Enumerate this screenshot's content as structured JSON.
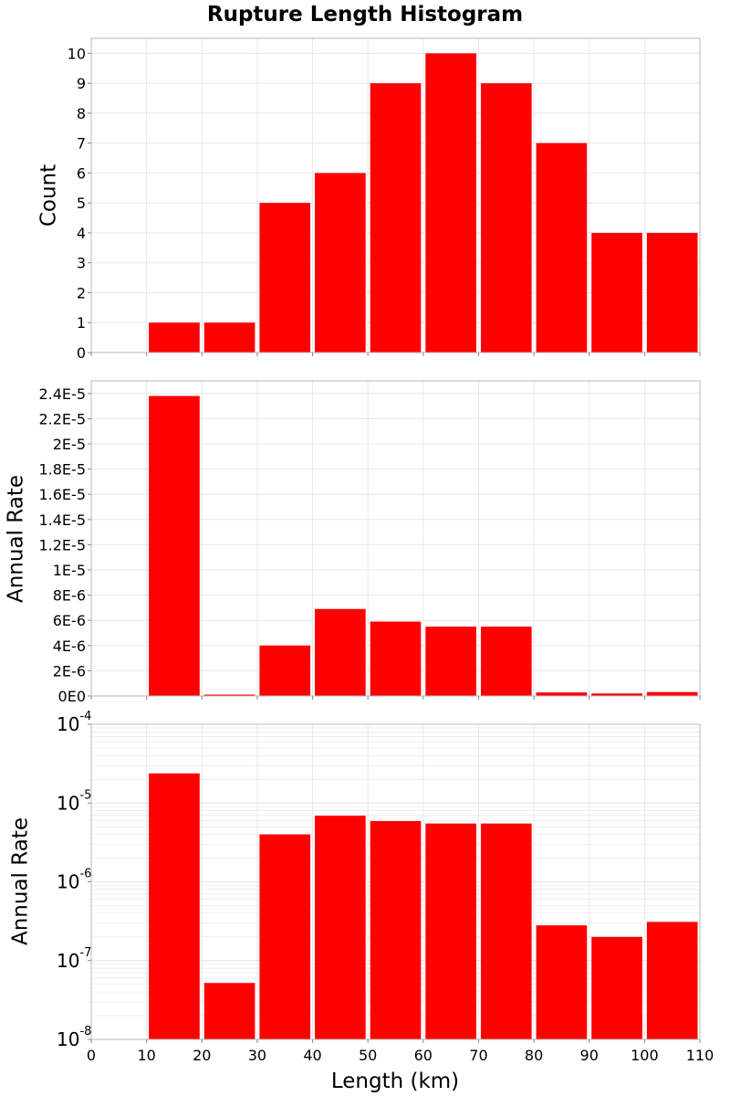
{
  "chart_data": {
    "title": "Rupture Length Histogram",
    "type": "bar",
    "colors": {
      "bar": "#ff0000",
      "grid": "#e8e8e8",
      "frame": "#b8b8b8"
    },
    "x": {
      "label": "Length (km)",
      "lim": [
        0,
        110
      ],
      "ticks": [
        0,
        10,
        20,
        30,
        40,
        50,
        60,
        70,
        80,
        90,
        100,
        110
      ],
      "tick_labels": [
        "0",
        "10",
        "20",
        "30",
        "40",
        "50",
        "60",
        "70",
        "80",
        "90",
        "100",
        "110"
      ],
      "bin_width": 10
    },
    "categories": [
      "0-10",
      "10-20",
      "20-30",
      "30-40",
      "40-50",
      "50-60",
      "60-70",
      "70-80",
      "80-90",
      "90-100",
      "100-110"
    ],
    "bin_starts": [
      0,
      10,
      20,
      30,
      40,
      50,
      60,
      70,
      80,
      90,
      100
    ],
    "panels": [
      {
        "ylabel": "Count",
        "scale": "linear",
        "ylim": [
          0,
          10.5
        ],
        "yticks": [
          0,
          1,
          2,
          3,
          4,
          5,
          6,
          7,
          8,
          9,
          10
        ],
        "ytick_labels": [
          "0",
          "1",
          "2",
          "3",
          "4",
          "5",
          "6",
          "7",
          "8",
          "9",
          "10"
        ],
        "values": [
          0,
          1,
          1,
          5,
          6,
          9,
          10,
          9,
          7,
          4,
          4
        ]
      },
      {
        "ylabel": "Annual Rate",
        "scale": "linear",
        "ylim": [
          0,
          2.5e-05
        ],
        "yticks": [
          0,
          2e-06,
          4e-06,
          6e-06,
          8e-06,
          1e-05,
          1.2e-05,
          1.4e-05,
          1.6e-05,
          1.8e-05,
          2e-05,
          2.2e-05,
          2.4e-05
        ],
        "ytick_labels": [
          "0E0",
          "2E-6",
          "4E-6",
          "6E-6",
          "8E-6",
          "1E-5",
          "1.2E-5",
          "1.4E-5",
          "1.6E-5",
          "1.8E-5",
          "2E-5",
          "2.2E-5",
          "2.4E-5"
        ],
        "values": [
          0,
          2.38e-05,
          5.2e-08,
          4e-06,
          6.9e-06,
          5.9e-06,
          5.5e-06,
          5.5e-06,
          2.8e-07,
          2e-07,
          3.1e-07
        ]
      },
      {
        "ylabel": "Annual Rate",
        "scale": "log",
        "ylim": [
          1e-08,
          0.0001
        ],
        "yticks": [
          1e-08,
          1e-07,
          1e-06,
          1e-05,
          0.0001
        ],
        "ytick_base": "10",
        "ytick_exponents": [
          "-8",
          "-7",
          "-6",
          "-5",
          "-4"
        ],
        "values": [
          0,
          2.38e-05,
          5.2e-08,
          4e-06,
          6.9e-06,
          5.9e-06,
          5.5e-06,
          5.5e-06,
          2.8e-07,
          2e-07,
          3.1e-07
        ]
      }
    ]
  }
}
